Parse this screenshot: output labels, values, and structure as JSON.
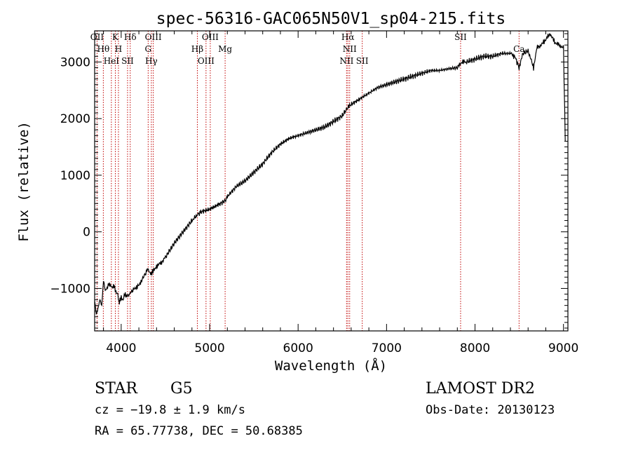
{
  "chart_data": {
    "type": "line",
    "title": "spec-56316-GAC065N50V1_sp04-215.fits",
    "xlabel": "Wavelength (Å)",
    "ylabel": "Flux (relative)",
    "xlim": [
      3700,
      9050
    ],
    "ylim": [
      -1750,
      3550
    ],
    "x_ticks": [
      4000,
      5000,
      6000,
      7000,
      8000,
      9000
    ],
    "y_ticks": [
      -1000,
      0,
      1000,
      2000,
      3000
    ],
    "series": [
      {
        "x": [
          3700,
          3720,
          3740,
          3760,
          3780,
          3800,
          3820,
          3840,
          3860,
          3880,
          3900,
          3920,
          3940,
          3960,
          3968,
          3980,
          4000,
          4020,
          4040,
          4060,
          4080,
          4101,
          4120,
          4150,
          4200,
          4250,
          4290,
          4300,
          4320,
          4340,
          4360,
          4380,
          4400,
          4450,
          4500,
          4600,
          4700,
          4800,
          4861,
          4900,
          5000,
          5100,
          5175,
          5200,
          5300,
          5400,
          5500,
          5600,
          5700,
          5800,
          5900,
          6000,
          6100,
          6200,
          6300,
          6400,
          6500,
          6563,
          6600,
          6700,
          6800,
          6900,
          7000,
          7100,
          7200,
          7300,
          7400,
          7500,
          7600,
          7700,
          7800,
          7850,
          7900,
          8000,
          8100,
          8200,
          8300,
          8400,
          8450,
          8498,
          8542,
          8600,
          8662,
          8700,
          8750,
          8800,
          8850,
          8900,
          8950,
          9000,
          9020
        ],
        "values": [
          -1200,
          -1450,
          -1350,
          -1200,
          -1300,
          -850,
          -1050,
          -1000,
          -900,
          -950,
          -1000,
          -950,
          -1050,
          -1100,
          -1200,
          -1250,
          -1150,
          -1200,
          -1100,
          -1150,
          -1100,
          -1100,
          -1050,
          -1000,
          -950,
          -800,
          -700,
          -650,
          -700,
          -750,
          -700,
          -650,
          -600,
          -550,
          -450,
          -200,
          0,
          200,
          300,
          350,
          400,
          480,
          550,
          620,
          800,
          900,
          1050,
          1200,
          1400,
          1550,
          1650,
          1700,
          1750,
          1800,
          1850,
          1950,
          2050,
          2200,
          2250,
          2350,
          2450,
          2550,
          2600,
          2650,
          2700,
          2750,
          2800,
          2850,
          2850,
          2880,
          2900,
          3000,
          3000,
          3050,
          3100,
          3100,
          3150,
          3150,
          3100,
          2900,
          3150,
          3200,
          2900,
          3250,
          3300,
          3400,
          3500,
          3350,
          3300,
          3250,
          1600
        ]
      }
    ],
    "line_markers": [
      {
        "label": "OII",
        "wavelength": 3727
      },
      {
        "label": "Hθ",
        "wavelength": 3798
      },
      {
        "label": "HeI",
        "wavelength": 3889
      },
      {
        "label": "K",
        "wavelength": 3934
      },
      {
        "label": "H",
        "wavelength": 3969
      },
      {
        "label": "SII",
        "wavelength": 4072
      },
      {
        "label": "Hδ",
        "wavelength": 4102
      },
      {
        "label": "G",
        "wavelength": 4305
      },
      {
        "label": "Hγ",
        "wavelength": 4341
      },
      {
        "label": "OIII",
        "wavelength": 4363
      },
      {
        "label": "Hβ",
        "wavelength": 4861
      },
      {
        "label": "OIII",
        "wavelength": 4959
      },
      {
        "label": "OIII",
        "wavelength": 5007
      },
      {
        "label": "Mg",
        "wavelength": 5175
      },
      {
        "label": "NII",
        "wavelength": 6548
      },
      {
        "label": "Hα",
        "wavelength": 6563
      },
      {
        "label": "NII",
        "wavelength": 6583
      },
      {
        "label": "SII",
        "wavelength": 6725
      },
      {
        "label": "SII",
        "wavelength": 7837
      },
      {
        "label": "Ca",
        "wavelength": 8498
      }
    ],
    "grid": false,
    "line_color": "#000000",
    "marker_color": "#c00000"
  },
  "info": {
    "object_class": "STAR",
    "subclass": "G5",
    "survey": "LAMOST DR2",
    "redshift": "cz = −19.8 ± 1.9 km/s",
    "obs_date": "Obs-Date: 20130123",
    "coords": "RA =  65.77738, DEC =  50.68385"
  }
}
